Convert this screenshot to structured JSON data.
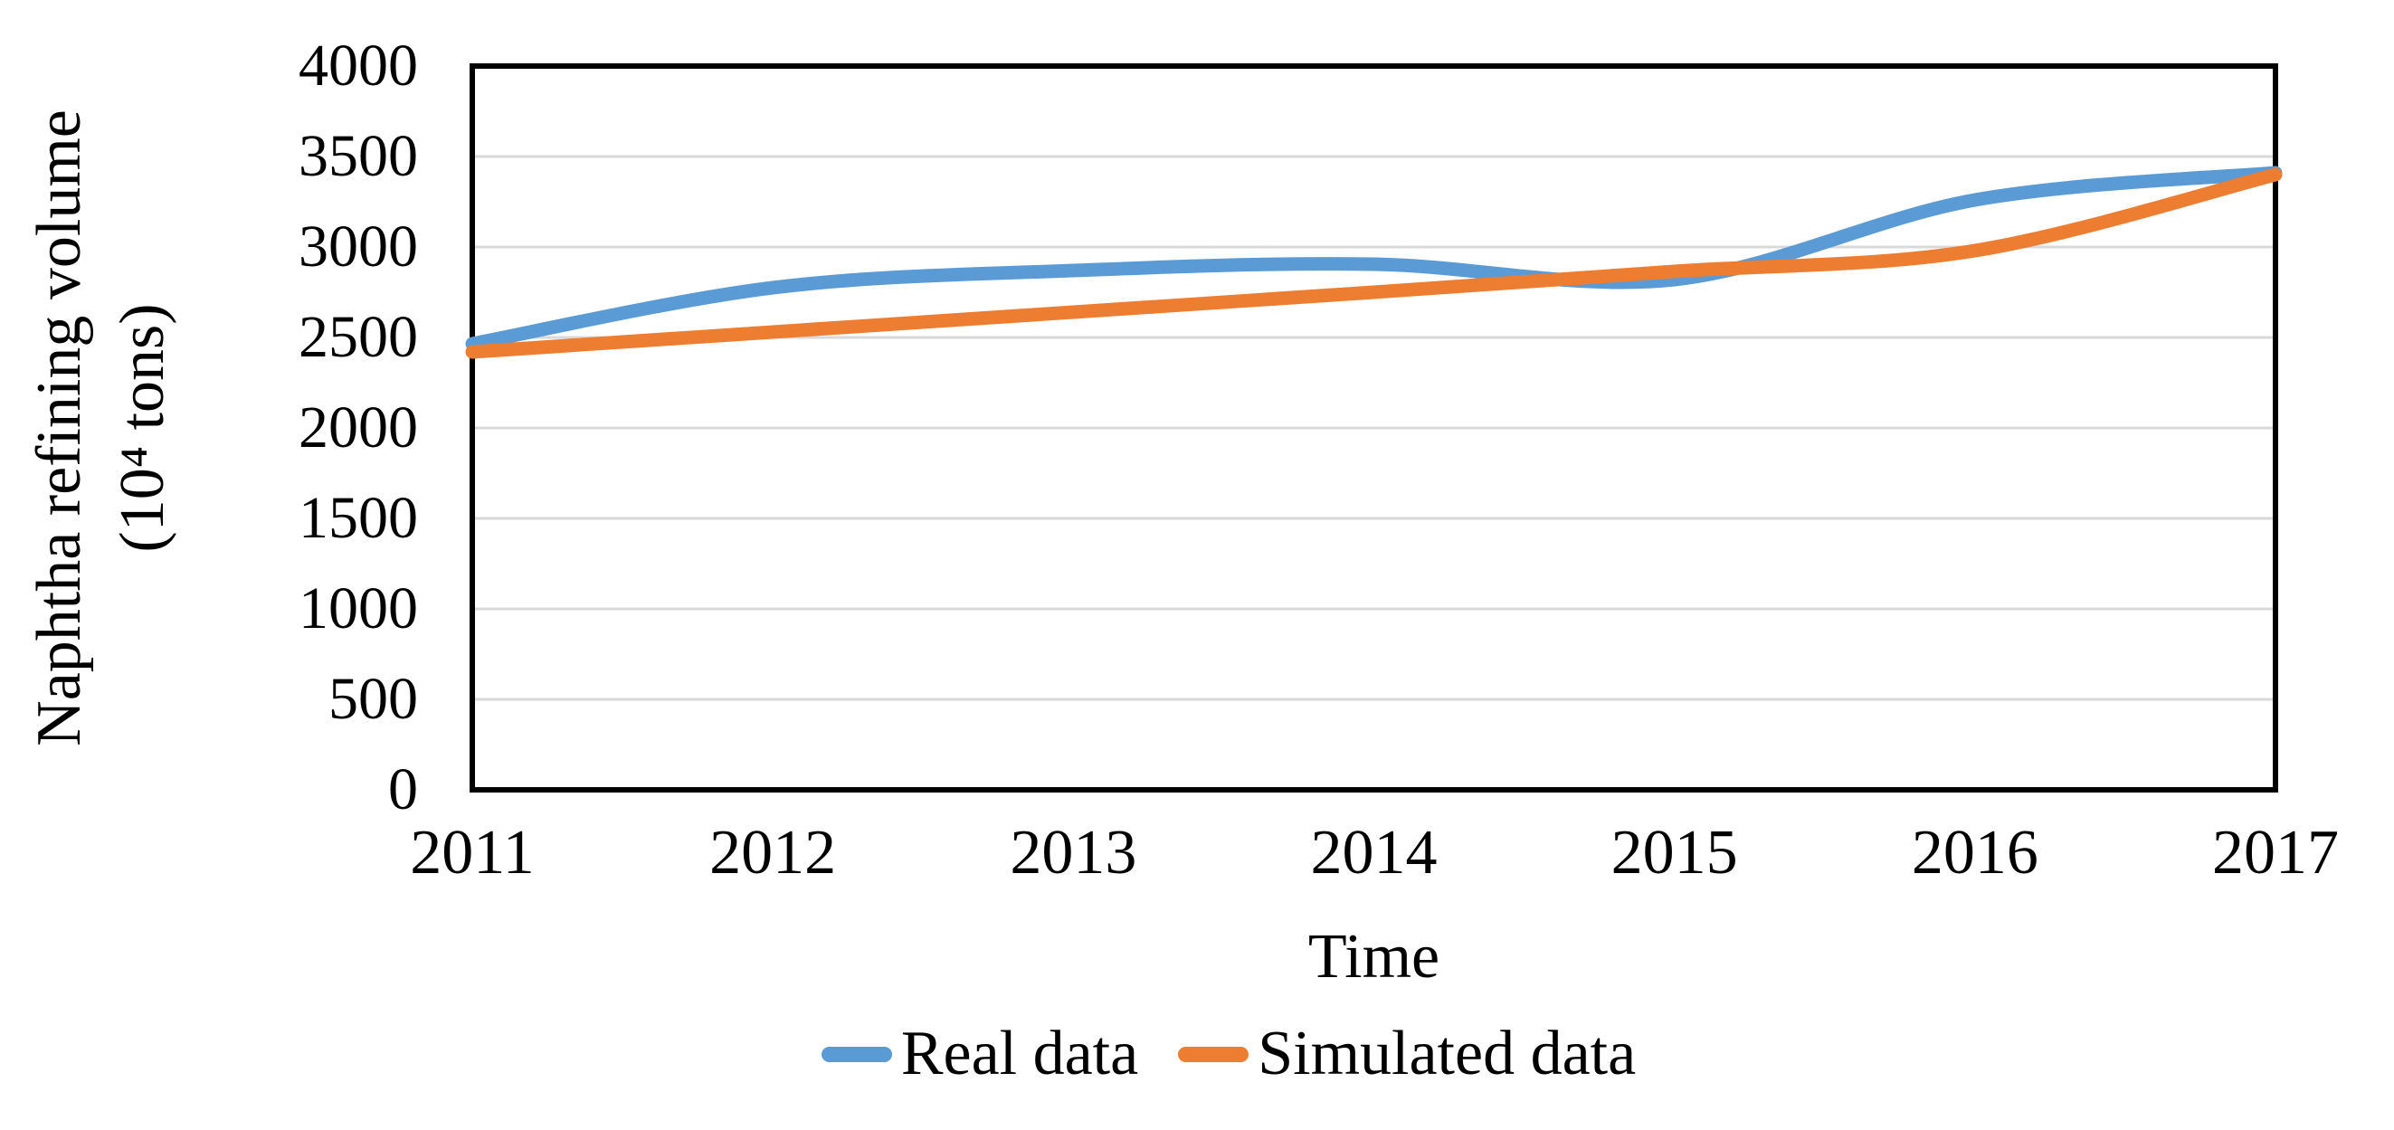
{
  "chart_data": {
    "type": "line",
    "smooth": true,
    "x": [
      2011,
      2012,
      2013,
      2014,
      2015,
      2016,
      2017
    ],
    "xlabel": "Time",
    "ylabel_line1": "Naphtha refining volume",
    "ylabel_line2": "(10⁴ tons)",
    "ylim": [
      0,
      4000
    ],
    "yticks": [
      0,
      500,
      1000,
      1500,
      2000,
      2500,
      3000,
      3500,
      4000
    ],
    "grid": "horizontal",
    "legend_position": "bottom",
    "colors": {
      "gridline": "#D9D9D9",
      "axis_border": "#000000",
      "text": "#000000",
      "background": "#FFFFFF"
    },
    "series": [
      {
        "name": "Real data",
        "color": "#5B9BD5",
        "values": [
          2465,
          2775,
          2870,
          2905,
          2820,
          3260,
          3410
        ]
      },
      {
        "name": "Simulated data",
        "color": "#ED7D31",
        "values": [
          2420,
          2530,
          2640,
          2750,
          2865,
          2980,
          3400
        ]
      }
    ]
  }
}
